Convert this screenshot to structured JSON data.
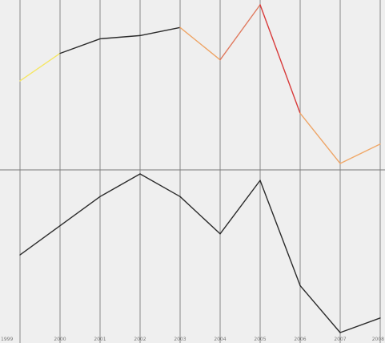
{
  "chart_data": [
    {
      "type": "line",
      "title": "",
      "xlabel": "",
      "ylabel": "",
      "grid": true,
      "x": [
        "1999",
        "2000",
        "2001",
        "2002",
        "2003",
        "2004",
        "2005",
        "2006",
        "2007",
        "2008"
      ],
      "ylim": [
        0,
        100
      ],
      "series": [
        {
          "values": [
            53,
            70,
            79,
            81,
            86,
            66,
            100,
            33,
            2,
            14
          ],
          "segment_colors": [
            "#f5e663",
            "#2b2b2b",
            "#2b2b2b",
            "#2b2b2b",
            "#eea567",
            "#e07a5f",
            "#d83a3a",
            "#eea567",
            "#f0a868"
          ]
        }
      ]
    },
    {
      "type": "line",
      "title": "",
      "xlabel": "",
      "ylabel": "",
      "grid": true,
      "x": [
        "1999",
        "2000",
        "2001",
        "2002",
        "2003",
        "2004",
        "2005",
        "2006",
        "2007",
        "2008"
      ],
      "ylim": [
        0,
        100
      ],
      "series": [
        {
          "color": "#2b2b2b",
          "values": [
            48,
            66,
            84,
            98,
            84,
            61,
            94,
            29,
            0,
            9
          ]
        }
      ]
    }
  ],
  "x_tick_labels": [
    "1999",
    "2000",
    "2001",
    "2002",
    "2003",
    "2004",
    "2005",
    "2006",
    "2007",
    "2008"
  ],
  "colors": {
    "background": "#efefef",
    "grid": "#8a8a8a",
    "separator": "#7a7a7a"
  }
}
